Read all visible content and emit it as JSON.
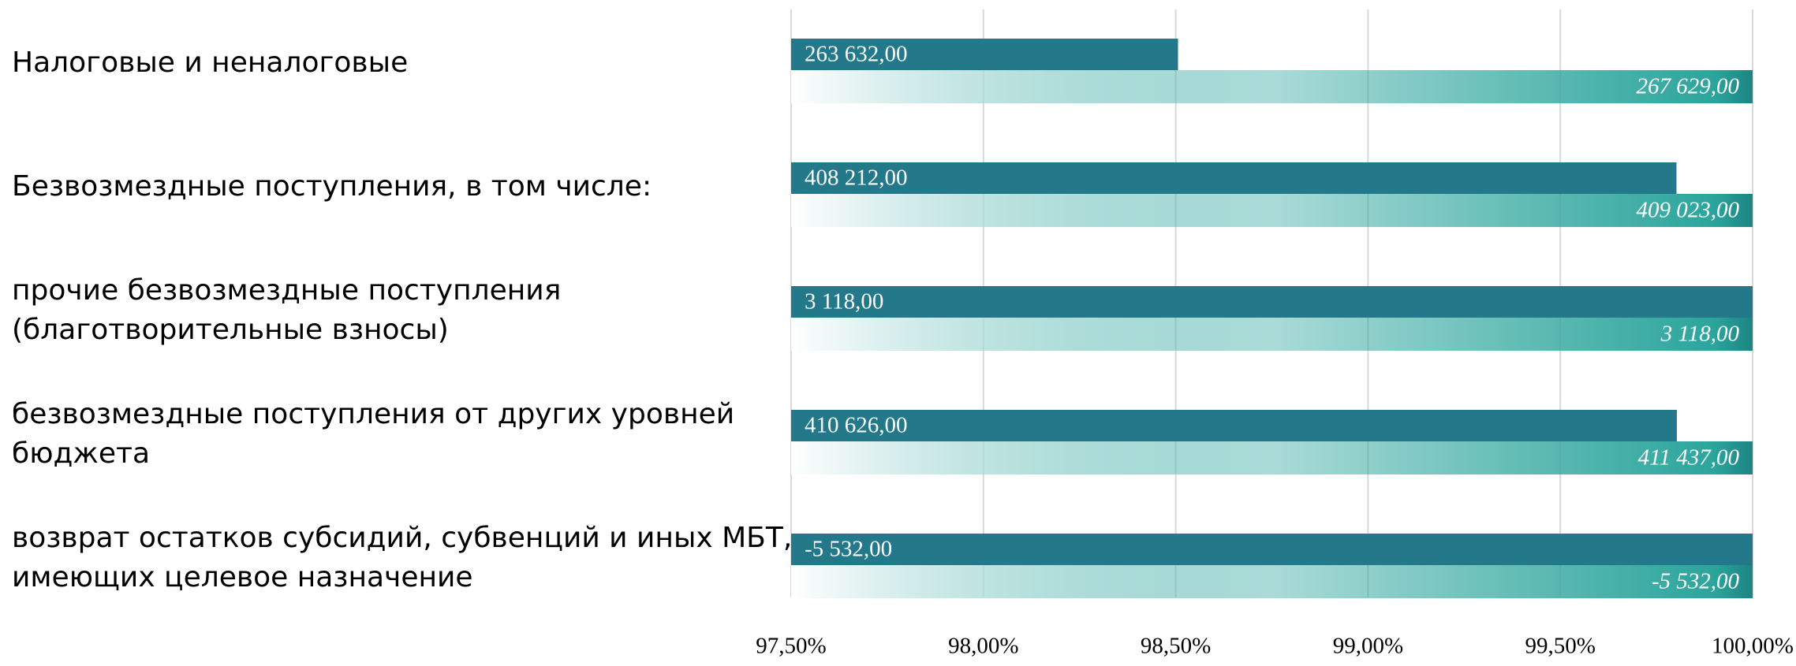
{
  "chart_data": {
    "type": "bar",
    "orientation": "horizontal",
    "categories": [
      "Налоговые и неналоговые",
      "Безвозмездные поступления, в том числе:",
      "прочие безвозмездные поступления\n(благотворительные взносы)",
      "безвозмездные поступления от других уровней\nбюджета",
      "возврат остатков субсидий, субвенций и иных МБТ,\nимеющих целевое назначение"
    ],
    "series": [
      {
        "color": "#23788a",
        "values": [
          98.506,
          99.802,
          100,
          99.803,
          100
        ],
        "data_labels": [
          "263 632,00",
          "408 212,00",
          "3 118,00",
          "410 626,00",
          "-5 532,00"
        ]
      },
      {
        "color": "#2ba59c",
        "gradient": true,
        "values": [
          100,
          100,
          100,
          100,
          100
        ],
        "data_labels": [
          "267 629,00",
          "409 023,00",
          "3 118,00",
          "411 437,00",
          "-5 532,00"
        ]
      }
    ],
    "xlim": [
      97.5,
      100
    ],
    "xticks": [
      {
        "value": 97.5,
        "label": "97,50%"
      },
      {
        "value": 98,
        "label": "98,00%"
      },
      {
        "value": 98.5,
        "label": "98,50%"
      },
      {
        "value": 99,
        "label": "99,00%"
      },
      {
        "value": 99.5,
        "label": "99,50%"
      },
      {
        "value": 100,
        "label": "100,00%"
      }
    ],
    "grid": true
  }
}
